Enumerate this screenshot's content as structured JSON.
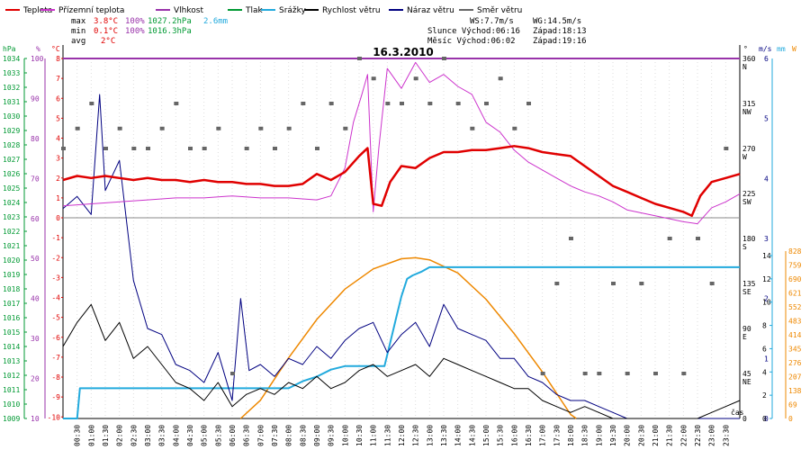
{
  "legend": [
    {
      "label": "Teplota",
      "color": "#e00000"
    },
    {
      "label": "Přízemní teplota",
      "color": "#cc33cc"
    },
    {
      "label": "Vlhkost",
      "color": "#9933aa"
    },
    {
      "label": "Tlak",
      "color": "#009933"
    },
    {
      "label": "Srážky",
      "color": "#22aadd"
    },
    {
      "label": "Rychlost větru",
      "color": "#000000"
    },
    {
      "label": "Náraz větru",
      "color": "#000080"
    },
    {
      "label": "Směr větru",
      "color": "#666666"
    }
  ],
  "stats": {
    "max_label": "max",
    "max_temp": "3.8°C",
    "max_hum": "100%",
    "max_press": "1027.2hPa",
    "rain": "2.6mm",
    "min_label": "min",
    "min_temp": "0.1°C",
    "min_hum": "100%",
    "min_press": "1016.3hPa",
    "avg_label": "avg",
    "avg_temp": "2°C",
    "ws": "WS:7.7m/s",
    "wg": "WG:14.5m/s",
    "sun_rise": "Slunce Východ:06:16",
    "sun_set": "Západ:18:13",
    "moon_rise": "Měsíc  Východ:06:02",
    "moon_set": "Západ:19:16"
  },
  "colors": {
    "temp": "#e00000",
    "ground": "#cc33cc",
    "hum": "#9933aa",
    "press": "#009933",
    "rain": "#22aadd",
    "wind": "#000000",
    "gust": "#000080",
    "dir": "#666666",
    "solar": "#ee8800"
  },
  "chart_data": {
    "type": "line",
    "title": "16.3.2010",
    "xlabel": "čas",
    "x_ticks": [
      "00:30",
      "01:00",
      "01:30",
      "02:00",
      "02:30",
      "03:00",
      "03:30",
      "04:00",
      "04:30",
      "05:00",
      "05:30",
      "06:00",
      "06:30",
      "07:00",
      "07:30",
      "08:00",
      "08:30",
      "09:00",
      "09:30",
      "10:00",
      "10:30",
      "11:00",
      "11:30",
      "12:00",
      "12:30",
      "13:00",
      "13:30",
      "14:00",
      "14:30",
      "15:00",
      "15:30",
      "16:00",
      "16:30",
      "17:00",
      "17:30",
      "18:00",
      "18:30",
      "19:00",
      "19:30",
      "20:00",
      "20:30",
      "21:00",
      "21:30",
      "22:00",
      "22:30",
      "23:00",
      "23:30"
    ],
    "axes": {
      "pressure": {
        "unit": "hPa",
        "range": [
          1009,
          1034
        ]
      },
      "humidity": {
        "unit": "%",
        "range": [
          10,
          100
        ]
      },
      "temperature": {
        "unit": "°C",
        "range": [
          -10,
          8
        ]
      },
      "wind_dir": {
        "unit": "°",
        "range": [
          0,
          360
        ]
      },
      "wind_speed": {
        "unit": "m/s",
        "range": [
          0,
          6
        ]
      },
      "rain": {
        "unit": "mm",
        "range": [
          0,
          14
        ]
      },
      "solar": {
        "unit": "W",
        "range": [
          0,
          828
        ]
      }
    },
    "pressure_ticks": [
      "1034",
      "1033",
      "1032",
      "1031",
      "1030",
      "1029",
      "1028",
      "1027",
      "1026",
      "1025",
      "1024",
      "1023",
      "1022",
      "1021",
      "1020",
      "1019",
      "1018",
      "1017",
      "1016",
      "1015",
      "1014",
      "1013",
      "1012",
      "1011",
      "1010",
      "1009"
    ],
    "humidity_ticks": [
      "100",
      "90",
      "80",
      "70",
      "60",
      "50",
      "40",
      "30",
      "20",
      "10"
    ],
    "temp_ticks": [
      "8",
      "7",
      "6",
      "5",
      "4",
      "3",
      "2",
      "1",
      "0",
      "-1",
      "-2",
      "-3",
      "-4",
      "-5",
      "-6",
      "-7",
      "-8",
      "-9",
      "-10"
    ],
    "dir_ticks": [
      "360",
      "315",
      "270",
      "225",
      "180",
      "135",
      "90",
      "45",
      "0"
    ],
    "dir_names": [
      "N",
      "NW",
      "W",
      "SW",
      "S",
      "SE",
      "E",
      "NE"
    ],
    "ws_ticks": [
      "6",
      "5",
      "4",
      "3",
      "2",
      "1",
      "0"
    ],
    "rain_ticks": [
      "14",
      "12",
      "10",
      "8",
      "6",
      "4",
      "2",
      "0"
    ],
    "solar_ticks": [
      "828",
      "759",
      "690",
      "621",
      "552",
      "483",
      "414",
      "345",
      "276",
      "207",
      "138",
      "69",
      "0"
    ],
    "series": [
      {
        "name": "Teplota",
        "axis": "temperature",
        "x": [
          0,
          0.5,
          1,
          1.5,
          2,
          2.5,
          3,
          3.5,
          4,
          4.5,
          5,
          5.5,
          6,
          6.5,
          7,
          7.5,
          8,
          8.5,
          9,
          9.5,
          10,
          10.5,
          10.8,
          11,
          11.3,
          11.6,
          12,
          12.5,
          13,
          13.5,
          14,
          14.5,
          15,
          15.5,
          16,
          16.5,
          17,
          17.5,
          18,
          18.5,
          19,
          19.5,
          20,
          20.5,
          21,
          21.5,
          22,
          22.3,
          22.6,
          23,
          23.5,
          24
        ],
        "values": [
          1.9,
          2.1,
          2.0,
          2.1,
          2.0,
          1.9,
          2.0,
          1.9,
          1.9,
          1.8,
          1.9,
          1.8,
          1.8,
          1.7,
          1.7,
          1.6,
          1.6,
          1.7,
          2.2,
          1.9,
          2.3,
          3.1,
          3.5,
          0.7,
          0.6,
          1.8,
          2.6,
          2.5,
          3.0,
          3.3,
          3.3,
          3.4,
          3.4,
          3.5,
          3.6,
          3.5,
          3.3,
          3.2,
          3.1,
          2.6,
          2.1,
          1.6,
          1.3,
          1.0,
          0.7,
          0.5,
          0.3,
          0.1,
          1.1,
          1.8,
          2.0,
          2.2
        ]
      },
      {
        "name": "Přízemní teplota",
        "axis": "temperature",
        "x": [
          0,
          1,
          2,
          3,
          4,
          5,
          6,
          7,
          8,
          9,
          9.5,
          10,
          10.3,
          10.6,
          10.8,
          11,
          11.2,
          11.5,
          12,
          12.5,
          13,
          13.5,
          14,
          14.5,
          15,
          15.5,
          16,
          16.5,
          17,
          17.5,
          18,
          18.5,
          19,
          19.5,
          20,
          21,
          22,
          22.5,
          23,
          23.5,
          24
        ],
        "values": [
          0.6,
          0.7,
          0.8,
          0.9,
          1.0,
          1.0,
          1.1,
          1.0,
          1.0,
          0.9,
          1.1,
          2.5,
          4.8,
          6.2,
          7.2,
          0.3,
          3.5,
          7.5,
          6.5,
          7.8,
          6.8,
          7.2,
          6.6,
          6.2,
          4.8,
          4.3,
          3.4,
          2.8,
          2.4,
          2.0,
          1.6,
          1.3,
          1.1,
          0.8,
          0.4,
          0.1,
          -0.2,
          -0.3,
          0.5,
          0.8,
          1.2
        ]
      },
      {
        "name": "Vlhkost",
        "axis": "humidity",
        "x": [
          0,
          24
        ],
        "values": [
          100,
          100
        ]
      },
      {
        "name": "Srážky",
        "axis": "rain",
        "x": [
          0,
          0.5,
          0.6,
          1,
          2,
          3,
          4,
          5,
          6,
          7,
          8,
          8.5,
          9,
          9.5,
          10,
          10.5,
          11,
          11.4,
          11.6,
          11.8,
          12,
          12.2,
          12.4,
          12.7,
          13,
          13.5,
          14,
          16,
          18,
          20,
          22,
          24
        ],
        "values": [
          0,
          0,
          2.6,
          2.6,
          2.6,
          2.6,
          2.6,
          2.6,
          2.6,
          2.6,
          2.6,
          3.2,
          3.6,
          4.2,
          4.5,
          4.5,
          4.5,
          4.5,
          6.5,
          8.5,
          10.5,
          12.0,
          12.3,
          12.6,
          13.0,
          13.0,
          13.0,
          13.0,
          13.0,
          13.0,
          13.0,
          13.0
        ]
      },
      {
        "name": "Rychlost větru",
        "axis": "wind_speed",
        "x": [
          0,
          0.5,
          1,
          1.5,
          2,
          2.5,
          3,
          3.5,
          4,
          4.5,
          5,
          5.5,
          6,
          6.5,
          7,
          7.5,
          8,
          8.5,
          9,
          9.5,
          10,
          10.5,
          11,
          11.5,
          12,
          12.5,
          13,
          13.5,
          14,
          14.5,
          15,
          15.5,
          16,
          16.5,
          17,
          17.5,
          18,
          18.5,
          19,
          19.5,
          20,
          20.5,
          21,
          21.5,
          22,
          22.5,
          23,
          23.5,
          24
        ],
        "values": [
          1.2,
          1.6,
          1.9,
          1.3,
          1.6,
          1.0,
          1.2,
          0.9,
          0.6,
          0.5,
          0.3,
          0.6,
          0.2,
          0.4,
          0.5,
          0.4,
          0.6,
          0.5,
          0.7,
          0.5,
          0.6,
          0.8,
          0.9,
          0.7,
          0.8,
          0.9,
          0.7,
          1.0,
          0.9,
          0.8,
          0.7,
          0.6,
          0.5,
          0.5,
          0.3,
          0.2,
          0.1,
          0.2,
          0.1,
          0.0,
          0.0,
          0.0,
          0.0,
          0.0,
          0.0,
          0.0,
          0.1,
          0.2,
          0.3
        ]
      },
      {
        "name": "Náraz větru",
        "axis": "wind_speed",
        "x": [
          0,
          0.5,
          1,
          1.3,
          1.5,
          2,
          2.5,
          3,
          3.5,
          4,
          4.5,
          5,
          5.5,
          6,
          6.3,
          6.6,
          7,
          7.5,
          8,
          8.5,
          9,
          9.5,
          10,
          10.5,
          11,
          11.5,
          12,
          12.5,
          13,
          13.5,
          14,
          14.5,
          15,
          15.5,
          16,
          16.5,
          17,
          17.5,
          18,
          18.5,
          19,
          19.5,
          20,
          22,
          24
        ],
        "values": [
          3.5,
          3.7,
          3.4,
          5.4,
          3.8,
          4.3,
          2.3,
          1.5,
          1.4,
          0.9,
          0.8,
          0.6,
          1.1,
          0.3,
          2.0,
          0.8,
          0.9,
          0.7,
          1.0,
          0.9,
          1.2,
          1.0,
          1.3,
          1.5,
          1.6,
          1.1,
          1.4,
          1.6,
          1.2,
          1.9,
          1.5,
          1.4,
          1.3,
          1.0,
          1.0,
          0.7,
          0.6,
          0.4,
          0.3,
          0.3,
          0.2,
          0.1,
          0.0,
          0.0,
          0.0
        ]
      },
      {
        "name": "Směr větru",
        "axis": "wind_dir",
        "x": [
          0,
          0.5,
          1,
          1.5,
          2,
          2.5,
          3,
          3.5,
          4,
          4.5,
          5,
          5.5,
          6,
          6.5,
          7,
          7.5,
          8,
          8.5,
          9,
          9.5,
          10,
          10.5,
          11,
          11.5,
          12,
          12.5,
          13,
          13.5,
          14,
          14.5,
          15,
          15.5,
          16,
          16.5,
          17,
          17.5,
          18,
          18.5,
          19,
          19.5,
          20,
          20.5,
          21,
          21.5,
          22,
          22.5,
          23,
          23.5
        ],
        "values": [
          270,
          290,
          315,
          270,
          290,
          270,
          270,
          290,
          315,
          270,
          270,
          290,
          45,
          270,
          290,
          270,
          290,
          315,
          270,
          315,
          290,
          360,
          340,
          315,
          315,
          340,
          315,
          360,
          315,
          290,
          315,
          340,
          290,
          315,
          45,
          135,
          180,
          45,
          45,
          135,
          45,
          135,
          45,
          180,
          45,
          180,
          135,
          270
        ]
      },
      {
        "name": "Solar",
        "axis": "solar",
        "x": [
          6.3,
          7,
          8,
          9,
          10,
          11,
          12,
          12.5,
          13,
          14,
          15,
          16,
          17,
          18,
          18.2
        ],
        "values": [
          0,
          90,
          300,
          490,
          640,
          740,
          790,
          795,
          785,
          720,
          590,
          420,
          230,
          20,
          0
        ]
      }
    ]
  }
}
